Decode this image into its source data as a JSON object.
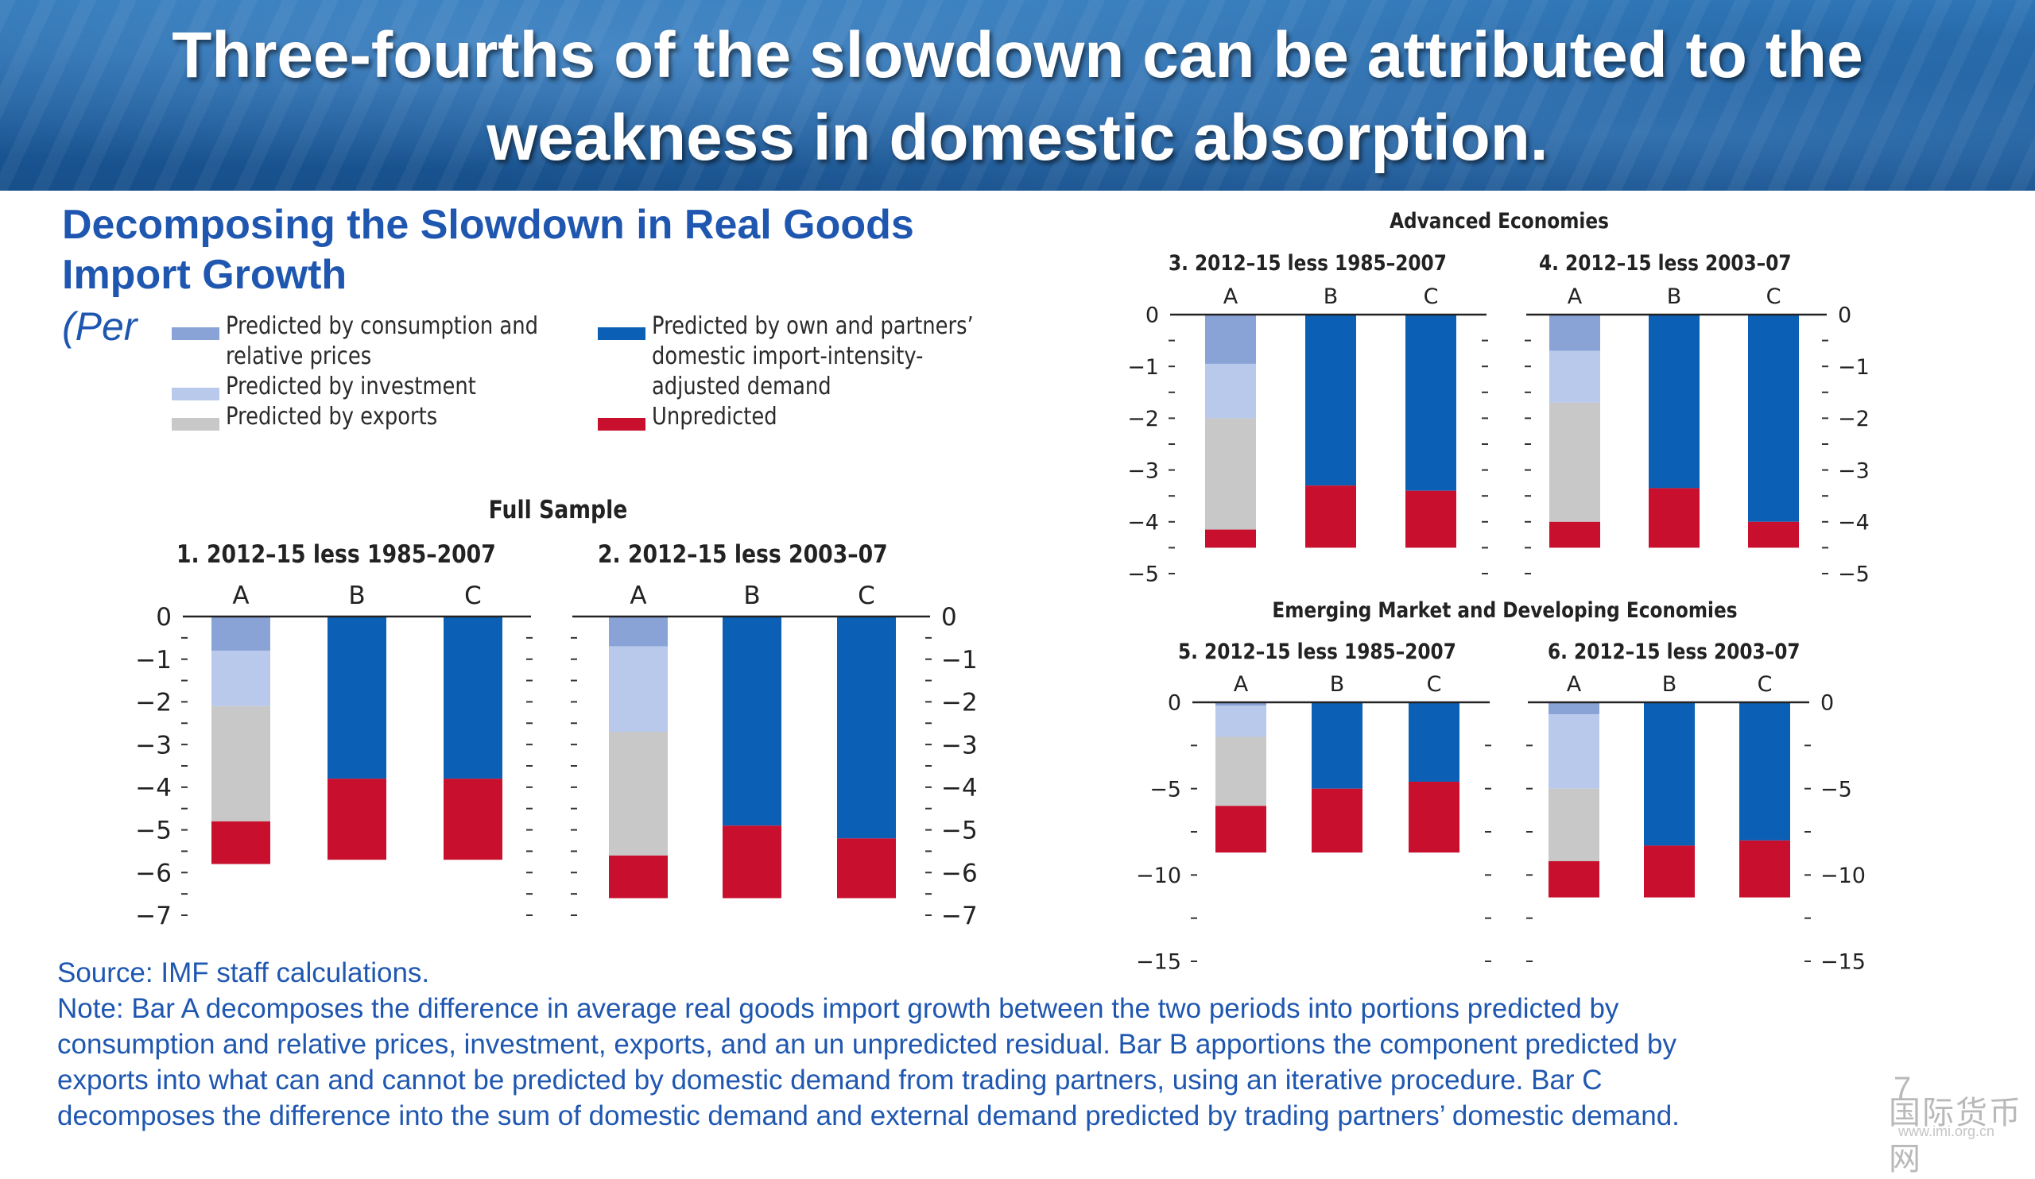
{
  "slide": {
    "headline": "Three-fourths of the slowdown can be attributed to the weakness in domestic absorption.",
    "title": "Decomposing the Slowdown in Real Goods Import Growth",
    "subtitle": "(Per",
    "source": "Source: IMF staff calculations.",
    "note_lines": [
      "Note: Bar A decomposes the difference in average real goods import growth between the two periods into portions predicted by",
      "consumption and relative prices, investment, exports, and an un unpredicted residual. Bar B apportions the component predicted by",
      "exports into what can and cannot be predicted by domestic demand from trading partners, using an iterative procedure. Bar C",
      "decomposes the difference into the sum of domestic demand and external demand predicted by trading partners’ domestic demand."
    ],
    "page_number": "7",
    "watermark": "国际货币网",
    "watermark_url": "www.imi.org.cn"
  },
  "colors": {
    "consumption": "#8aa3d6",
    "investment": "#b9c9ec",
    "exports": "#c8c8c8",
    "demand": "#0b5fb4",
    "unpredicted": "#c8102e",
    "banner": "#1f5f9f",
    "text_blue": "#1f57b0"
  },
  "legend": [
    {
      "key": "consumption",
      "lines": [
        "Predicted by consumption and",
        "relative prices"
      ]
    },
    {
      "key": "investment",
      "lines": [
        "Predicted by investment"
      ]
    },
    {
      "key": "exports",
      "lines": [
        "Predicted by exports"
      ]
    },
    {
      "key": "demand",
      "lines": [
        "Predicted by own and partners’",
        "domestic import-intensity-",
        "adjusted demand"
      ]
    },
    {
      "key": "unpredicted",
      "lines": [
        "Unpredicted"
      ]
    }
  ],
  "chart_data": [
    {
      "type": "bar",
      "stacked": true,
      "group": "Full Sample",
      "title": "1. 2012–15 less 1985–2007",
      "categories": [
        "A",
        "B",
        "C"
      ],
      "ylim": [
        -7,
        0
      ],
      "yticks": [
        0,
        -1,
        -2,
        -3,
        -4,
        -5,
        -6,
        -7
      ],
      "series": [
        {
          "name": "Predicted by consumption and relative prices",
          "key": "consumption",
          "values": [
            -0.8,
            0,
            0
          ]
        },
        {
          "name": "Predicted by investment",
          "key": "investment",
          "values": [
            -1.3,
            0,
            0
          ]
        },
        {
          "name": "Predicted by exports",
          "key": "exports",
          "values": [
            -2.7,
            0,
            0
          ]
        },
        {
          "name": "Predicted by own and partners’ domestic import-intensity-adjusted demand",
          "key": "demand",
          "values": [
            0,
            -3.8,
            -3.8
          ]
        },
        {
          "name": "Unpredicted",
          "key": "unpredicted",
          "values": [
            -1.0,
            -1.9,
            -1.9
          ]
        }
      ]
    },
    {
      "type": "bar",
      "stacked": true,
      "group": "Full Sample",
      "title": "2. 2012–15 less 2003–07",
      "categories": [
        "A",
        "B",
        "C"
      ],
      "ylim": [
        -7,
        0
      ],
      "yticks": [
        0,
        -1,
        -2,
        -3,
        -4,
        -5,
        -6,
        -7
      ],
      "series": [
        {
          "name": "Predicted by consumption and relative prices",
          "key": "consumption",
          "values": [
            -0.7,
            0,
            0
          ]
        },
        {
          "name": "Predicted by investment",
          "key": "investment",
          "values": [
            -2.0,
            0,
            0
          ]
        },
        {
          "name": "Predicted by exports",
          "key": "exports",
          "values": [
            -2.9,
            0,
            0
          ]
        },
        {
          "name": "Predicted by own and partners’ domestic import-intensity-adjusted demand",
          "key": "demand",
          "values": [
            0,
            -4.9,
            -5.2
          ]
        },
        {
          "name": "Unpredicted",
          "key": "unpredicted",
          "values": [
            -1.0,
            -1.7,
            -1.4
          ]
        }
      ]
    },
    {
      "type": "bar",
      "stacked": true,
      "group": "Advanced Economies",
      "title": "3. 2012–15 less 1985–2007",
      "categories": [
        "A",
        "B",
        "C"
      ],
      "ylim": [
        -5,
        0
      ],
      "yticks": [
        0,
        -1,
        -2,
        -3,
        -4,
        -5
      ],
      "series": [
        {
          "name": "Predicted by consumption and relative prices",
          "key": "consumption",
          "values": [
            -0.95,
            0,
            0
          ]
        },
        {
          "name": "Predicted by investment",
          "key": "investment",
          "values": [
            -1.05,
            0,
            0
          ]
        },
        {
          "name": "Predicted by exports",
          "key": "exports",
          "values": [
            -2.15,
            0,
            0
          ]
        },
        {
          "name": "Predicted by own and partners’ domestic import-intensity-adjusted demand",
          "key": "demand",
          "values": [
            0,
            -3.3,
            -3.4
          ]
        },
        {
          "name": "Unpredicted",
          "key": "unpredicted",
          "values": [
            -0.35,
            -1.2,
            -1.1
          ]
        }
      ]
    },
    {
      "type": "bar",
      "stacked": true,
      "group": "Advanced Economies",
      "title": "4. 2012–15 less 2003–07",
      "categories": [
        "A",
        "B",
        "C"
      ],
      "ylim": [
        -5,
        0
      ],
      "yticks": [
        0,
        -1,
        -2,
        -3,
        -4,
        -5
      ],
      "series": [
        {
          "name": "Predicted by consumption and relative prices",
          "key": "consumption",
          "values": [
            -0.7,
            0,
            0
          ]
        },
        {
          "name": "Predicted by investment",
          "key": "investment",
          "values": [
            -1.0,
            0,
            0
          ]
        },
        {
          "name": "Predicted by exports",
          "key": "exports",
          "values": [
            -2.3,
            0,
            0
          ]
        },
        {
          "name": "Predicted by own and partners’ domestic import-intensity-adjusted demand",
          "key": "demand",
          "values": [
            0,
            -3.35,
            -4.0
          ]
        },
        {
          "name": "Unpredicted",
          "key": "unpredicted",
          "values": [
            -0.5,
            -1.15,
            -0.5
          ]
        }
      ]
    },
    {
      "type": "bar",
      "stacked": true,
      "group": "Emerging Market and Developing Economies",
      "title": "5. 2012–15 less 1985–2007",
      "categories": [
        "A",
        "B",
        "C"
      ],
      "ylim": [
        -15,
        0
      ],
      "yticks": [
        0,
        -5,
        -10,
        -15
      ],
      "series": [
        {
          "name": "Predicted by consumption and relative prices",
          "key": "consumption",
          "values": [
            -0.2,
            0,
            0
          ]
        },
        {
          "name": "Predicted by investment",
          "key": "investment",
          "values": [
            -1.8,
            0,
            0
          ]
        },
        {
          "name": "Predicted by exports",
          "key": "exports",
          "values": [
            -4.0,
            0,
            0
          ]
        },
        {
          "name": "Predicted by own and partners’ domestic import-intensity-adjusted demand",
          "key": "demand",
          "values": [
            0,
            -5.0,
            -4.6
          ]
        },
        {
          "name": "Unpredicted",
          "key": "unpredicted",
          "values": [
            -2.7,
            -3.7,
            -4.1
          ]
        }
      ]
    },
    {
      "type": "bar",
      "stacked": true,
      "group": "Emerging Market and Developing Economies",
      "title": "6. 2012–15 less 2003–07",
      "categories": [
        "A",
        "B",
        "C"
      ],
      "ylim": [
        -15,
        0
      ],
      "yticks": [
        0,
        -5,
        -10,
        -15
      ],
      "series": [
        {
          "name": "Predicted by consumption and relative prices",
          "key": "consumption",
          "values": [
            -0.7,
            0,
            0
          ]
        },
        {
          "name": "Predicted by investment",
          "key": "investment",
          "values": [
            -4.3,
            0,
            0
          ]
        },
        {
          "name": "Predicted by exports",
          "key": "exports",
          "values": [
            -4.2,
            0,
            0
          ]
        },
        {
          "name": "Predicted by own and partners’ domestic import-intensity-adjusted demand",
          "key": "demand",
          "values": [
            0,
            -8.3,
            -8.0
          ]
        },
        {
          "name": "Unpredicted",
          "key": "unpredicted",
          "values": [
            -2.1,
            -3.0,
            -3.3
          ]
        }
      ]
    }
  ]
}
